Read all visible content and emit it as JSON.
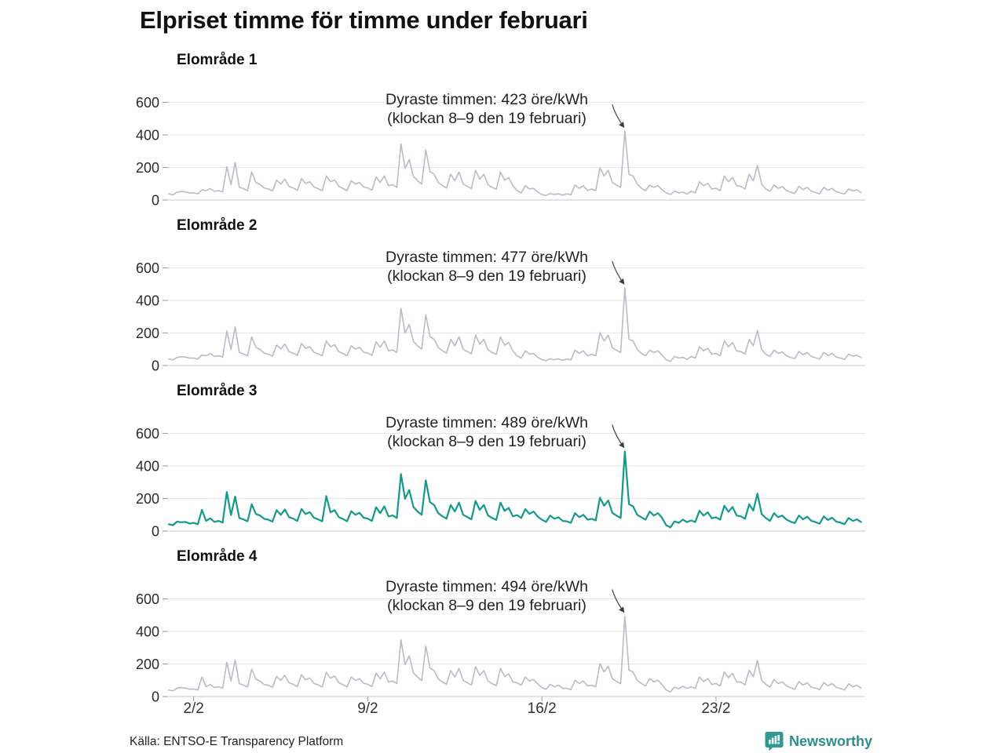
{
  "page": {
    "title": "Elpriset timme för timme under februari",
    "source": "Källa: ENTSO-E Transparency Platform",
    "brand": "Newsworthy"
  },
  "colors": {
    "default_line": "#bcb9c9",
    "highlight_line": "#149a88",
    "grid": "#e6e6ea",
    "axis_line": "#d2d2d8",
    "tick": "#999aa0",
    "text": "#1c1c1c",
    "arrow": "#3c3c3c",
    "brand_teal": "#2b8e8d"
  },
  "y_axis": {
    "tick_values": [
      0,
      200,
      400,
      600
    ]
  },
  "x_axis": {
    "tick_labels": [
      "2/2",
      "9/2",
      "16/2",
      "23/2"
    ],
    "tick_days": [
      1,
      8,
      15,
      22
    ]
  },
  "chart_data": [
    {
      "type": "line",
      "title": "Elområde 1",
      "annotation": {
        "line1": "Dyraste timmen: 423 öre/kWh",
        "line2": "(klockan 8–9 den 19 februari)"
      },
      "peak_value": 423,
      "peak_time": "klockan 8–9 den 19 februari",
      "unit": "öre/kWh",
      "color": "#bcb9c9",
      "samples_per_day": 6,
      "days": 28,
      "ylim": [
        0,
        650
      ],
      "values": [
        38,
        32,
        48,
        52,
        50,
        44,
        44,
        38,
        62,
        58,
        70,
        54,
        58,
        50,
        205,
        95,
        230,
        78,
        70,
        58,
        172,
        108,
        96,
        74,
        68,
        56,
        122,
        98,
        128,
        84,
        74,
        60,
        132,
        102,
        112,
        80,
        70,
        58,
        148,
        112,
        124,
        84,
        72,
        58,
        118,
        98,
        108,
        80,
        74,
        60,
        142,
        108,
        148,
        88,
        94,
        78,
        345,
        195,
        248,
        145,
        118,
        98,
        308,
        175,
        158,
        108,
        88,
        74,
        158,
        118,
        172,
        98,
        84,
        70,
        182,
        128,
        158,
        94,
        78,
        66,
        172,
        122,
        138,
        88,
        58,
        44,
        88,
        68,
        72,
        48,
        34,
        28,
        40,
        34,
        38,
        30,
        38,
        32,
        92,
        72,
        88,
        58,
        68,
        58,
        198,
        148,
        182,
        108,
        92,
        78,
        423,
        158,
        148,
        98,
        72,
        58,
        92,
        78,
        88,
        62,
        44,
        34,
        54,
        44,
        48,
        36,
        54,
        44,
        112,
        88,
        102,
        68,
        72,
        58,
        148,
        112,
        138,
        88,
        84,
        68,
        158,
        118,
        212,
        98,
        68,
        54,
        92,
        72,
        82,
        58,
        48,
        40,
        84,
        64,
        78,
        54,
        46,
        38,
        78,
        60,
        72,
        50,
        44,
        36,
        68,
        56,
        62,
        46
      ]
    },
    {
      "type": "line",
      "title": "Elområde 2",
      "annotation": {
        "line1": "Dyraste timmen: 477 öre/kWh",
        "line2": "(klockan 8–9 den 19 februari)"
      },
      "peak_value": 477,
      "peak_time": "klockan 8–9 den 19 februari",
      "unit": "öre/kWh",
      "color": "#bcb9c9",
      "samples_per_day": 6,
      "days": 28,
      "ylim": [
        0,
        650
      ],
      "values": [
        40,
        34,
        50,
        54,
        52,
        46,
        46,
        40,
        65,
        60,
        73,
        56,
        60,
        52,
        212,
        98,
        238,
        80,
        72,
        60,
        176,
        112,
        99,
        76,
        70,
        58,
        126,
        101,
        132,
        86,
        76,
        62,
        136,
        105,
        115,
        82,
        72,
        60,
        152,
        115,
        128,
        86,
        74,
        60,
        122,
        101,
        112,
        82,
        76,
        62,
        146,
        112,
        152,
        90,
        96,
        80,
        352,
        200,
        252,
        148,
        121,
        101,
        312,
        178,
        161,
        111,
        90,
        76,
        161,
        121,
        176,
        100,
        86,
        72,
        186,
        131,
        161,
        96,
        80,
        68,
        176,
        125,
        141,
        90,
        60,
        46,
        90,
        70,
        74,
        50,
        36,
        30,
        42,
        36,
        40,
        32,
        40,
        34,
        95,
        74,
        90,
        60,
        70,
        60,
        202,
        151,
        186,
        110,
        94,
        80,
        477,
        161,
        151,
        100,
        74,
        60,
        95,
        80,
        90,
        64,
        34,
        25,
        56,
        46,
        50,
        38,
        56,
        46,
        115,
        90,
        105,
        70,
        74,
        60,
        151,
        115,
        141,
        90,
        86,
        70,
        161,
        121,
        216,
        100,
        70,
        56,
        95,
        74,
        84,
        60,
        50,
        42,
        86,
        66,
        80,
        56,
        48,
        40,
        80,
        62,
        74,
        52,
        46,
        38,
        70,
        58,
        64,
        48
      ]
    },
    {
      "type": "line",
      "title": "Elområde 3",
      "annotation": {
        "line1": "Dyraste timmen: 489 öre/kWh",
        "line2": "(klockan 8–9 den 19 februari)"
      },
      "peak_value": 489,
      "peak_time": "klockan 8–9 den 19 februari",
      "unit": "öre/kWh",
      "color": "#149a88",
      "samples_per_day": 6,
      "days": 28,
      "ylim": [
        0,
        650
      ],
      "values": [
        42,
        36,
        58,
        54,
        56,
        46,
        50,
        42,
        130,
        62,
        78,
        56,
        62,
        52,
        240,
        98,
        212,
        80,
        72,
        60,
        165,
        105,
        95,
        75,
        70,
        58,
        128,
        100,
        132,
        86,
        76,
        62,
        136,
        104,
        116,
        82,
        72,
        60,
        215,
        115,
        128,
        86,
        74,
        60,
        122,
        100,
        112,
        82,
        76,
        62,
        146,
        110,
        152,
        90,
        96,
        80,
        350,
        198,
        252,
        148,
        120,
        100,
        312,
        178,
        160,
        110,
        90,
        76,
        160,
        120,
        175,
        100,
        86,
        72,
        185,
        130,
        160,
        96,
        80,
        68,
        175,
        124,
        142,
        90,
        98,
        80,
        135,
        105,
        120,
        88,
        70,
        56,
        95,
        75,
        85,
        62,
        60,
        50,
        110,
        85,
        100,
        70,
        75,
        65,
        205,
        155,
        188,
        112,
        95,
        80,
        489,
        165,
        152,
        100,
        85,
        70,
        120,
        95,
        110,
        80,
        35,
        22,
        60,
        50,
        70,
        55,
        65,
        55,
        125,
        95,
        115,
        78,
        85,
        70,
        155,
        118,
        148,
        95,
        90,
        75,
        165,
        125,
        230,
        105,
        80,
        62,
        110,
        85,
        95,
        70,
        58,
        48,
        95,
        72,
        88,
        62,
        55,
        45,
        90,
        68,
        82,
        58,
        52,
        42,
        80,
        62,
        72,
        55
      ]
    },
    {
      "type": "line",
      "title": "Elområde 4",
      "annotation": {
        "line1": "Dyraste timmen: 494 öre/kWh",
        "line2": "(klockan 8–9 den 19 februari)"
      },
      "peak_value": 494,
      "peak_time": "klockan 8–9 den 19 februari",
      "unit": "öre/kWh",
      "color": "#bcb9c9",
      "samples_per_day": 6,
      "days": 28,
      "ylim": [
        0,
        650
      ],
      "values": [
        40,
        34,
        52,
        55,
        52,
        45,
        46,
        40,
        120,
        60,
        74,
        55,
        60,
        52,
        210,
        96,
        225,
        79,
        71,
        59,
        168,
        106,
        95,
        74,
        69,
        57,
        124,
        99,
        130,
        85,
        75,
        61,
        134,
        103,
        114,
        81,
        71,
        59,
        150,
        113,
        126,
        85,
        73,
        59,
        120,
        99,
        110,
        81,
        75,
        61,
        144,
        109,
        150,
        89,
        95,
        79,
        348,
        196,
        250,
        146,
        119,
        99,
        310,
        176,
        159,
        109,
        89,
        75,
        159,
        119,
        173,
        99,
        85,
        71,
        183,
        129,
        159,
        95,
        79,
        67,
        173,
        123,
        140,
        89,
        85,
        70,
        120,
        95,
        105,
        78,
        55,
        45,
        75,
        60,
        70,
        50,
        50,
        42,
        100,
        80,
        95,
        65,
        70,
        60,
        202,
        152,
        185,
        110,
        94,
        79,
        494,
        162,
        150,
        99,
        80,
        65,
        110,
        90,
        100,
        72,
        40,
        28,
        58,
        48,
        62,
        50,
        60,
        50,
        120,
        92,
        110,
        74,
        80,
        65,
        152,
        115,
        142,
        90,
        88,
        72,
        162,
        122,
        222,
        100,
        75,
        58,
        105,
        80,
        90,
        65,
        54,
        44,
        92,
        70,
        85,
        58,
        52,
        42,
        86,
        66,
        80,
        56,
        50,
        40,
        78,
        60,
        70,
        52
      ]
    }
  ]
}
